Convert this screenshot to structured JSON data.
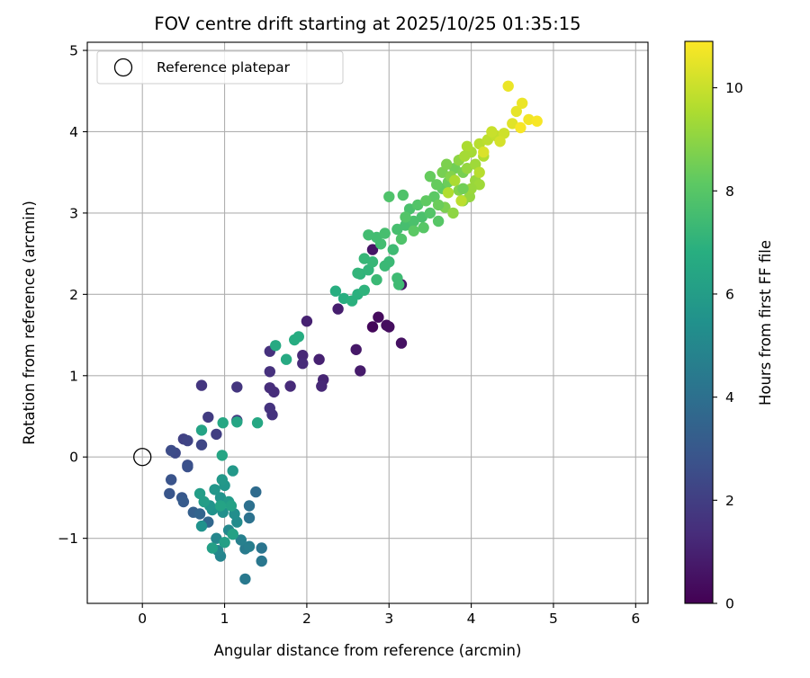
{
  "chart_data": {
    "type": "scatter",
    "title": "FOV centre drift starting at 2025/10/25 01:35:15",
    "xlabel": "Angular distance from reference (arcmin)",
    "ylabel": "Rotation from reference (arcmin)",
    "xlim": [
      -0.67,
      6.15
    ],
    "ylim": [
      -1.8,
      5.1
    ],
    "xticks": [
      0,
      1,
      2,
      3,
      4,
      5,
      6
    ],
    "xtick_labels": [
      "0",
      "1",
      "2",
      "3",
      "4",
      "5",
      "6"
    ],
    "yticks": [
      -1,
      0,
      1,
      2,
      3,
      4,
      5
    ],
    "ytick_labels": [
      "−1",
      "0",
      "1",
      "2",
      "3",
      "4",
      "5"
    ],
    "grid": true,
    "legend": {
      "location": "upper-left",
      "label": "Reference platepar"
    },
    "reference_point": {
      "x": 0,
      "y": 0,
      "marker": "open-circle"
    },
    "colorbar": {
      "label": "Hours from first FF file",
      "min": 0,
      "max": 10.9,
      "ticks": [
        0,
        2,
        4,
        6,
        8,
        10
      ],
      "tick_labels": [
        "0",
        "2",
        "4",
        "6",
        "8",
        "10"
      ],
      "colormap": "viridis"
    },
    "points": [
      [
        2.8,
        1.6,
        0.2
      ],
      [
        2.87,
        1.72,
        0.3
      ],
      [
        2.97,
        1.62,
        0.4
      ],
      [
        3.0,
        1.6,
        0.4
      ],
      [
        3.15,
        1.4,
        0.5
      ],
      [
        3.15,
        2.12,
        0.6
      ],
      [
        2.8,
        2.55,
        0.6
      ],
      [
        2.6,
        1.32,
        0.7
      ],
      [
        2.65,
        1.06,
        0.8
      ],
      [
        2.38,
        1.82,
        0.9
      ],
      [
        2.0,
        1.67,
        1.0
      ],
      [
        2.15,
        1.2,
        1.0
      ],
      [
        2.2,
        0.95,
        1.1
      ],
      [
        2.18,
        0.87,
        1.2
      ],
      [
        1.95,
        1.25,
        1.2
      ],
      [
        1.95,
        1.15,
        1.3
      ],
      [
        1.8,
        0.87,
        1.3
      ],
      [
        1.6,
        0.8,
        1.4
      ],
      [
        1.55,
        0.85,
        1.4
      ],
      [
        1.55,
        1.05,
        1.5
      ],
      [
        1.55,
        1.3,
        1.5
      ],
      [
        1.58,
        0.52,
        1.6
      ],
      [
        1.55,
        0.6,
        1.6
      ],
      [
        1.15,
        0.86,
        1.7
      ],
      [
        0.72,
        0.88,
        1.7
      ],
      [
        1.15,
        0.45,
        1.8
      ],
      [
        0.8,
        0.49,
        1.9
      ],
      [
        0.9,
        0.28,
        2.0
      ],
      [
        0.5,
        0.22,
        2.1
      ],
      [
        0.55,
        0.2,
        2.2
      ],
      [
        0.72,
        0.15,
        2.3
      ],
      [
        0.4,
        0.05,
        2.4
      ],
      [
        0.35,
        0.08,
        2.5
      ],
      [
        0.55,
        -0.1,
        2.6
      ],
      [
        0.55,
        -0.12,
        2.7
      ],
      [
        0.35,
        -0.28,
        2.8
      ],
      [
        0.33,
        -0.45,
        2.9
      ],
      [
        0.48,
        -0.5,
        3.0
      ],
      [
        0.5,
        -0.55,
        3.1
      ],
      [
        0.62,
        -0.68,
        3.3
      ],
      [
        0.7,
        -0.7,
        3.5
      ],
      [
        0.8,
        -0.8,
        3.6
      ],
      [
        1.38,
        -0.43,
        3.8
      ],
      [
        1.3,
        -0.6,
        4.0
      ],
      [
        1.3,
        -0.75,
        4.1
      ],
      [
        1.45,
        -1.12,
        4.2
      ],
      [
        1.45,
        -1.28,
        4.3
      ],
      [
        1.25,
        -1.5,
        4.4
      ],
      [
        1.25,
        -1.13,
        4.5
      ],
      [
        1.3,
        -1.1,
        4.6
      ],
      [
        1.2,
        -1.02,
        4.7
      ],
      [
        1.1,
        -0.95,
        4.8
      ],
      [
        0.95,
        -1.22,
        4.9
      ],
      [
        0.92,
        -1.15,
        5.0
      ],
      [
        0.9,
        -1.0,
        5.0
      ],
      [
        1.05,
        -0.9,
        5.1
      ],
      [
        1.15,
        -0.8,
        5.2
      ],
      [
        1.12,
        -0.7,
        5.3
      ],
      [
        0.98,
        -0.68,
        5.4
      ],
      [
        0.85,
        -0.65,
        5.5
      ],
      [
        0.72,
        -0.85,
        5.5
      ],
      [
        0.82,
        -0.6,
        5.6
      ],
      [
        0.95,
        -0.5,
        5.6
      ],
      [
        0.88,
        -0.4,
        5.7
      ],
      [
        1.0,
        -0.35,
        5.7
      ],
      [
        0.97,
        -0.28,
        5.8
      ],
      [
        1.1,
        -0.17,
        5.8
      ],
      [
        1.05,
        -0.55,
        5.9
      ],
      [
        0.75,
        -0.55,
        6.0
      ],
      [
        0.7,
        -0.45,
        6.0
      ],
      [
        0.85,
        -1.12,
        6.1
      ],
      [
        1.0,
        -1.05,
        6.1
      ],
      [
        1.1,
        -0.95,
        6.2
      ],
      [
        1.08,
        -0.6,
        6.2
      ],
      [
        0.95,
        -0.6,
        6.3
      ],
      [
        0.72,
        0.33,
        6.3
      ],
      [
        1.15,
        0.43,
        6.4
      ],
      [
        0.97,
        0.02,
        6.4
      ],
      [
        0.98,
        0.42,
        6.5
      ],
      [
        1.4,
        0.42,
        6.5
      ],
      [
        1.75,
        1.2,
        6.6
      ],
      [
        1.62,
        1.37,
        6.6
      ],
      [
        1.85,
        1.44,
        6.7
      ],
      [
        1.9,
        1.48,
        6.7
      ],
      [
        2.35,
        2.04,
        6.8
      ],
      [
        2.45,
        1.95,
        6.8
      ],
      [
        2.55,
        1.92,
        6.9
      ],
      [
        2.62,
        2.0,
        6.9
      ],
      [
        2.7,
        2.05,
        7.0
      ],
      [
        2.65,
        2.25,
        7.0
      ],
      [
        2.75,
        2.3,
        7.1
      ],
      [
        2.62,
        2.26,
        7.1
      ],
      [
        2.7,
        2.44,
        7.2
      ],
      [
        2.8,
        2.4,
        7.2
      ],
      [
        2.85,
        2.18,
        7.3
      ],
      [
        2.95,
        2.35,
        7.3
      ],
      [
        3.0,
        2.4,
        7.3
      ],
      [
        3.05,
        2.55,
        7.4
      ],
      [
        3.1,
        2.2,
        7.4
      ],
      [
        3.12,
        2.12,
        7.4
      ],
      [
        2.9,
        2.62,
        7.5
      ],
      [
        2.85,
        2.7,
        7.5
      ],
      [
        2.75,
        2.73,
        7.5
      ],
      [
        2.95,
        2.75,
        7.6
      ],
      [
        3.1,
        2.8,
        7.6
      ],
      [
        3.2,
        2.85,
        7.6
      ],
      [
        3.3,
        2.9,
        7.7
      ],
      [
        3.25,
        3.05,
        7.7
      ],
      [
        3.4,
        2.95,
        7.7
      ],
      [
        3.15,
        2.68,
        7.8
      ],
      [
        3.0,
        3.2,
        7.8
      ],
      [
        3.17,
        3.22,
        7.8
      ],
      [
        3.35,
        3.1,
        7.9
      ],
      [
        3.5,
        3.0,
        7.9
      ],
      [
        3.42,
        2.82,
        8.0
      ],
      [
        3.6,
        2.9,
        8.0
      ],
      [
        3.55,
        3.2,
        8.1
      ],
      [
        3.65,
        3.3,
        8.2
      ],
      [
        3.5,
        3.45,
        8.3
      ],
      [
        3.72,
        3.38,
        8.4
      ],
      [
        3.8,
        3.55,
        8.5
      ],
      [
        3.9,
        3.5,
        8.6
      ],
      [
        3.68,
        3.07,
        8.7
      ],
      [
        3.85,
        3.28,
        8.8
      ],
      [
        3.9,
        3.15,
        8.9
      ],
      [
        3.78,
        3.0,
        9.0
      ],
      [
        3.98,
        3.2,
        9.1
      ],
      [
        4.05,
        3.4,
        9.2
      ],
      [
        4.1,
        3.35,
        9.3
      ],
      [
        4.0,
        3.75,
        9.4
      ],
      [
        3.95,
        3.82,
        9.5
      ],
      [
        4.15,
        3.7,
        9.6
      ],
      [
        4.1,
        3.85,
        9.7
      ],
      [
        4.2,
        3.9,
        9.8
      ],
      [
        4.3,
        3.95,
        9.9
      ],
      [
        4.25,
        4.0,
        10.0
      ],
      [
        4.4,
        3.98,
        10.1
      ],
      [
        4.35,
        3.88,
        10.2
      ],
      [
        4.15,
        3.75,
        10.3
      ],
      [
        4.5,
        4.1,
        10.4
      ],
      [
        4.55,
        4.25,
        10.5
      ],
      [
        4.62,
        4.35,
        10.6
      ],
      [
        4.45,
        4.56,
        10.6
      ],
      [
        4.7,
        4.15,
        10.7
      ],
      [
        4.8,
        4.13,
        10.8
      ],
      [
        4.6,
        4.05,
        10.8
      ],
      [
        3.65,
        3.5,
        8.6
      ],
      [
        3.7,
        3.6,
        8.7
      ],
      [
        3.75,
        3.45,
        8.8
      ],
      [
        3.85,
        3.65,
        9.0
      ],
      [
        3.95,
        3.55,
        9.1
      ],
      [
        4.0,
        3.3,
        9.2
      ],
      [
        4.05,
        3.6,
        9.3
      ],
      [
        3.92,
        3.7,
        9.4
      ],
      [
        3.8,
        3.4,
        9.5
      ],
      [
        3.72,
        3.25,
        9.6
      ],
      [
        4.1,
        3.5,
        9.7
      ],
      [
        3.88,
        3.15,
        9.8
      ],
      [
        3.9,
        3.3,
        8.5
      ],
      [
        3.6,
        3.1,
        8.4
      ],
      [
        3.58,
        3.35,
        8.3
      ],
      [
        3.45,
        3.15,
        8.2
      ],
      [
        3.3,
        2.78,
        8.1
      ],
      [
        3.2,
        2.95,
        7.9
      ]
    ]
  }
}
